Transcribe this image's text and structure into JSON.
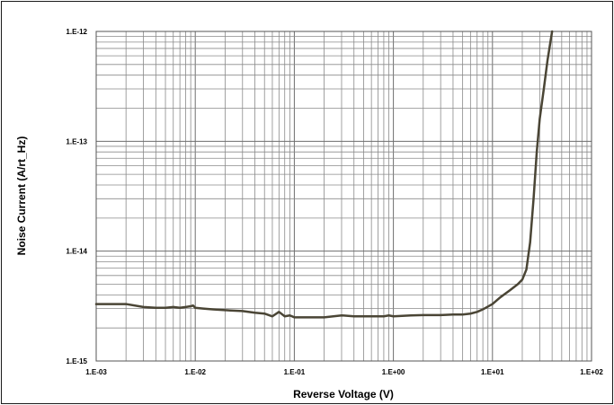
{
  "chart_data": {
    "type": "line",
    "title": "",
    "xlabel": "Reverse Voltage (V)",
    "ylabel": "Noise Current (A/rt_Hz)",
    "x_scale": "log",
    "y_scale": "log",
    "xlim": [
      0.001,
      100
    ],
    "ylim": [
      1e-15,
      1e-12
    ],
    "x_tick_labels": [
      "1.E-03",
      "1.E-02",
      "1.E-01",
      "1.E+00",
      "1.E+01",
      "1.E+02"
    ],
    "y_tick_labels": [
      "1.E-15",
      "1.E-14",
      "1.E-13",
      "1.E-12"
    ],
    "grid": true,
    "legend": "none",
    "line_color": "#4a4535",
    "series": [
      {
        "x": [
          0.001,
          0.0015,
          0.002,
          0.003,
          0.004,
          0.005,
          0.006,
          0.007,
          0.008,
          0.009,
          0.0095,
          0.01,
          0.012,
          0.015,
          0.02,
          0.03,
          0.04,
          0.05,
          0.06,
          0.07,
          0.08,
          0.09,
          0.1,
          0.12,
          0.15,
          0.2,
          0.3,
          0.4,
          0.5,
          0.7,
          0.8,
          0.9,
          1.0,
          1.5,
          2,
          3,
          4,
          5,
          6,
          7,
          8,
          10,
          12,
          15,
          18,
          20,
          22,
          24,
          26,
          28,
          30,
          33,
          36,
          40
        ],
        "y": [
          3.3e-15,
          3.3e-15,
          3.3e-15,
          3.1e-15,
          3.05e-15,
          3.05e-15,
          3.1e-15,
          3.05e-15,
          3.1e-15,
          3.15e-15,
          3.2e-15,
          3.05e-15,
          3e-15,
          2.95e-15,
          2.9e-15,
          2.85e-15,
          2.75e-15,
          2.7e-15,
          2.55e-15,
          2.8e-15,
          2.55e-15,
          2.6e-15,
          2.5e-15,
          2.5e-15,
          2.5e-15,
          2.5e-15,
          2.6e-15,
          2.55e-15,
          2.55e-15,
          2.55e-15,
          2.55e-15,
          2.6e-15,
          2.55e-15,
          2.6e-15,
          2.62e-15,
          2.62e-15,
          2.65e-15,
          2.65e-15,
          2.7e-15,
          2.8e-15,
          2.95e-15,
          3.3e-15,
          3.8e-15,
          4.4e-15,
          5e-15,
          5.5e-15,
          6.8e-15,
          1.2e-14,
          3e-14,
          8e-14,
          1.6e-13,
          3e-13,
          5.5e-13,
          1e-12
        ]
      }
    ]
  }
}
